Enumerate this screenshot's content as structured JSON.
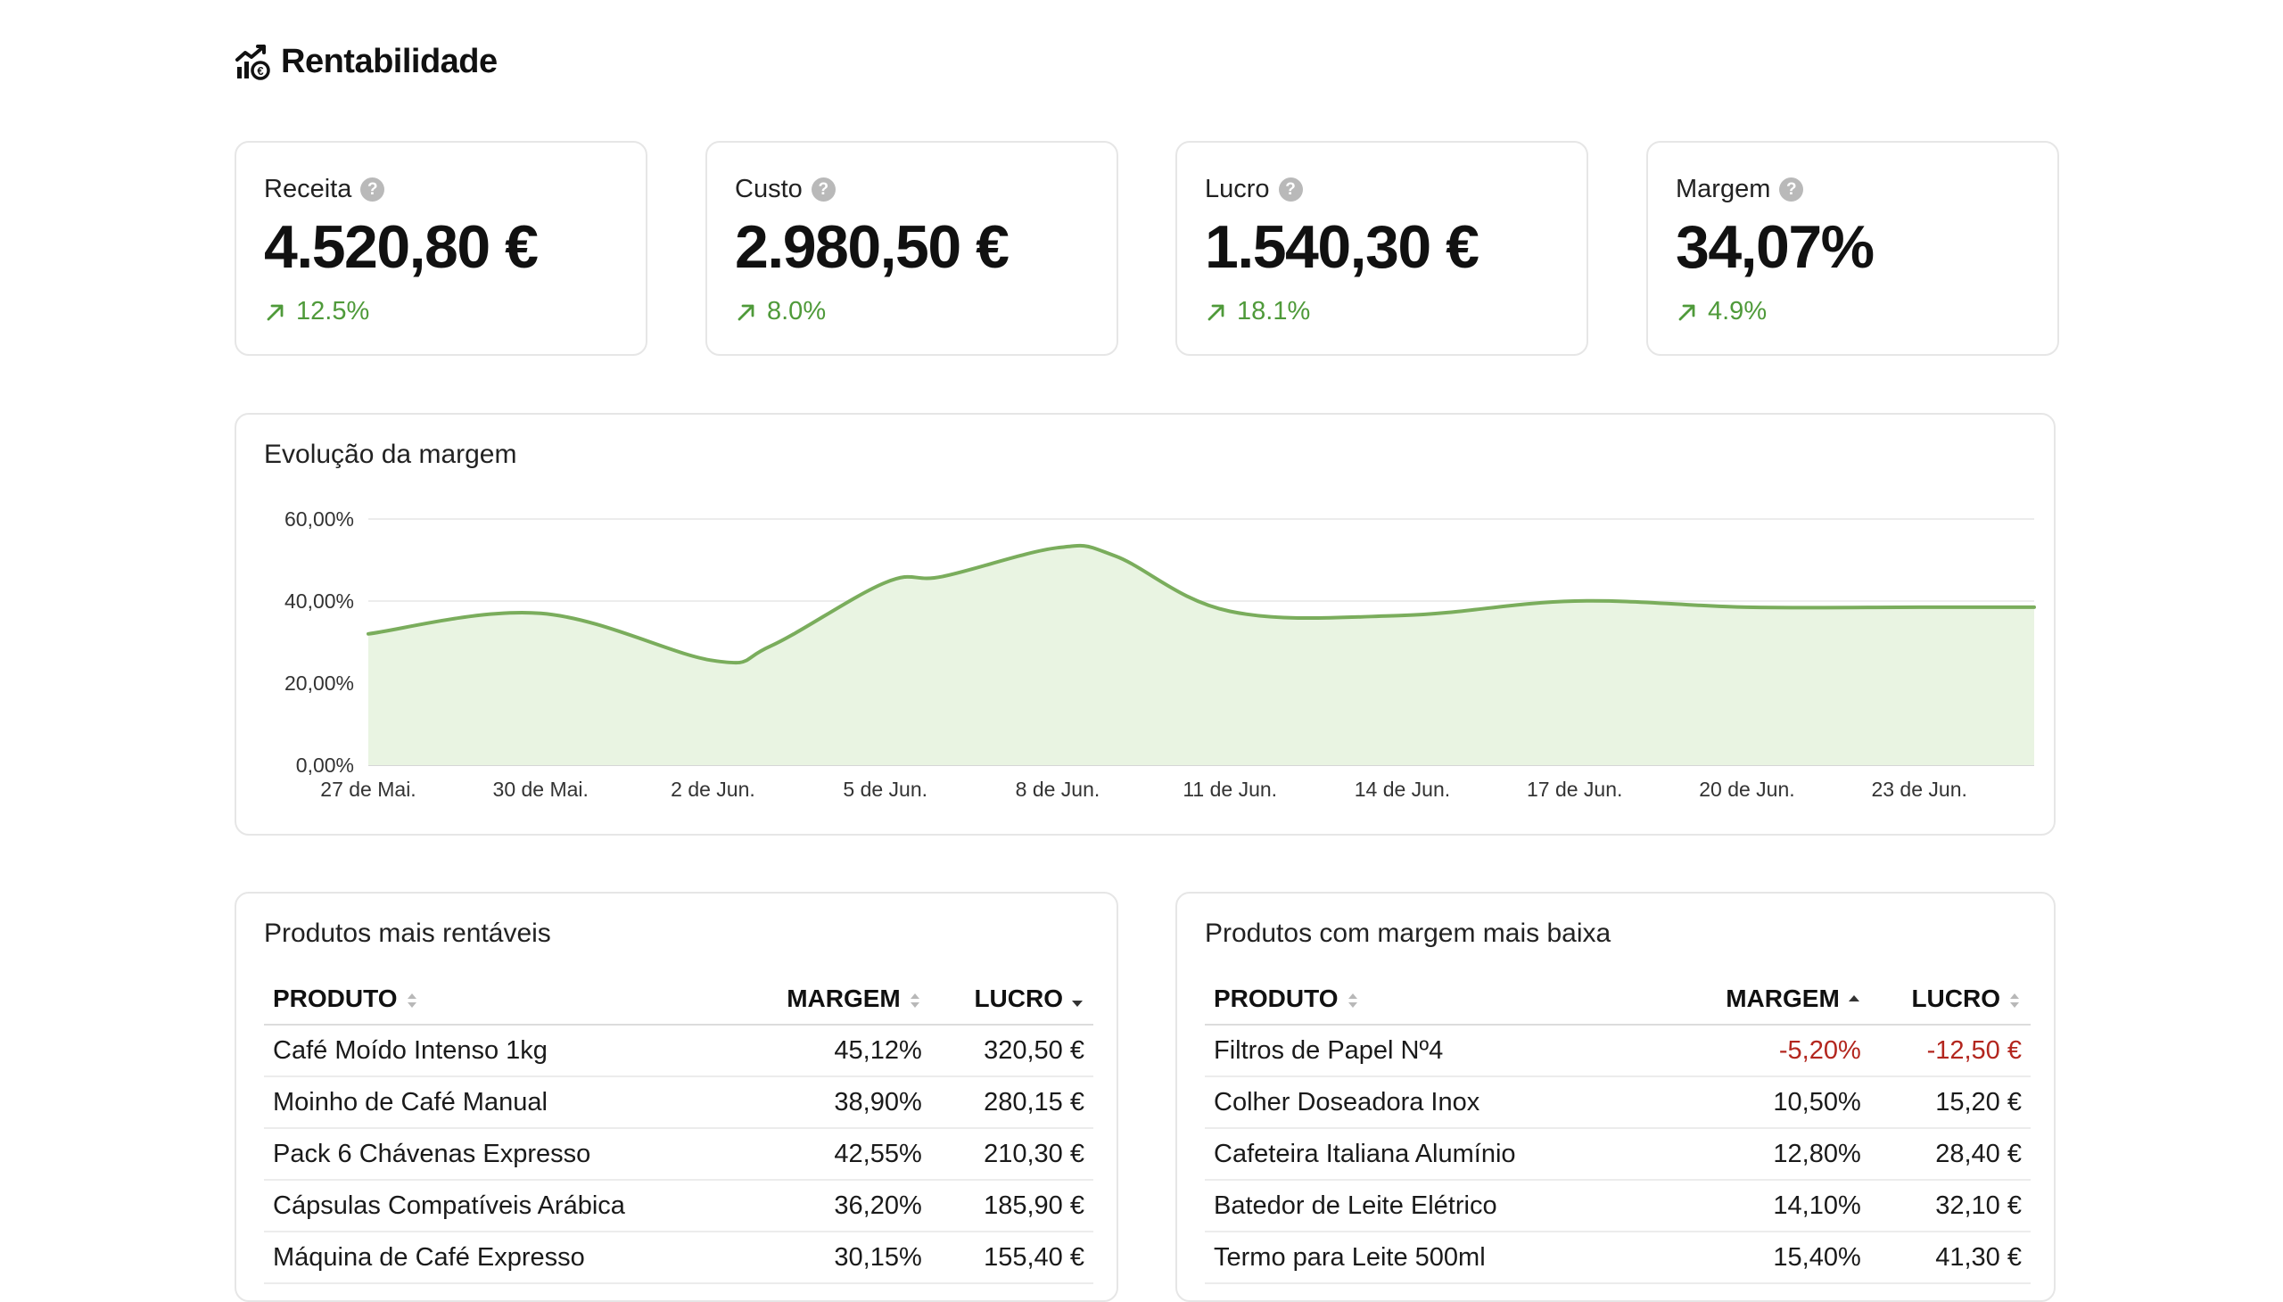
{
  "header": {
    "title": "Rentabilidade",
    "icon": "chart-growth-icon"
  },
  "kpis": [
    {
      "label": "Receita",
      "value": "4.520,80 €",
      "delta": "12.5%"
    },
    {
      "label": "Custo",
      "value": "2.980,50 €",
      "delta": "8.0%"
    },
    {
      "label": "Lucro",
      "value": "1.540,30 €",
      "delta": "18.1%"
    },
    {
      "label": "Margem",
      "value": "34,07%",
      "delta": "4.9%"
    }
  ],
  "colors": {
    "positive": "#4f9a3a",
    "negative": "#b3261e",
    "line": "#7aad5c",
    "fill": "#e9f4e2"
  },
  "chart": {
    "title": "Evolução da margem",
    "y_ticks": [
      "60,00%",
      "40,00%",
      "20,00%",
      "0,00%"
    ],
    "x_ticks": [
      "27 de Mai.",
      "30 de Mai.",
      "2 de Jun.",
      "5 de Jun.",
      "8 de Jun.",
      "11 de Jun.",
      "14 de Jun.",
      "17 de Jun.",
      "20 de Jun.",
      "23 de Jun."
    ]
  },
  "chart_data": {
    "type": "area",
    "title": "Evolução da margem",
    "xlabel": "",
    "ylabel": "",
    "ylim": [
      0,
      60
    ],
    "y_unit": "%",
    "grid": true,
    "x": [
      "27 de Mai.",
      "30 de Mai.",
      "2 de Jun.",
      "3 de Jun.",
      "5 de Jun.",
      "6 de Jun.",
      "8 de Jun.",
      "9 de Jun.",
      "11 de Jun.",
      "14 de Jun.",
      "17 de Jun.",
      "20 de Jun.",
      "23 de Jun.",
      "25 de Jun."
    ],
    "x_index": [
      0,
      3,
      6,
      7,
      9,
      10,
      12,
      13,
      15,
      18,
      21,
      24,
      27,
      29
    ],
    "values": [
      32,
      37,
      25.5,
      29,
      44.5,
      46,
      53,
      51,
      37.5,
      36.5,
      40,
      38.5,
      38.5,
      38.5
    ]
  },
  "top_products": {
    "title": "Produtos mais rentáveis",
    "headers": {
      "product": "PRODUTO",
      "margin": "MARGEM",
      "profit": "LUCRO"
    },
    "rows": [
      {
        "product": "Café Moído Intenso 1kg",
        "margin": "45,12%",
        "profit": "320,50 €"
      },
      {
        "product": "Moinho de Café Manual",
        "margin": "38,90%",
        "profit": "280,15 €"
      },
      {
        "product": "Pack 6 Chávenas Expresso",
        "margin": "42,55%",
        "profit": "210,30 €"
      },
      {
        "product": "Cápsulas Compatíveis Arábica",
        "margin": "36,20%",
        "profit": "185,90 €"
      },
      {
        "product": "Máquina de Café Expresso",
        "margin": "30,15%",
        "profit": "155,40 €"
      }
    ]
  },
  "low_margin_products": {
    "title": "Produtos com margem mais baixa",
    "headers": {
      "product": "PRODUTO",
      "margin": "MARGEM",
      "profit": "LUCRO"
    },
    "rows": [
      {
        "product": "Filtros de Papel Nº4",
        "margin": "-5,20%",
        "profit": "-12,50 €"
      },
      {
        "product": "Colher Doseadora Inox",
        "margin": "10,50%",
        "profit": "15,20 €"
      },
      {
        "product": "Cafeteira Italiana Alumínio",
        "margin": "12,80%",
        "profit": "28,40 €"
      },
      {
        "product": "Batedor de Leite Elétrico",
        "margin": "14,10%",
        "profit": "32,10 €"
      },
      {
        "product": "Termo para Leite 500ml",
        "margin": "15,40%",
        "profit": "41,30 €"
      }
    ]
  }
}
